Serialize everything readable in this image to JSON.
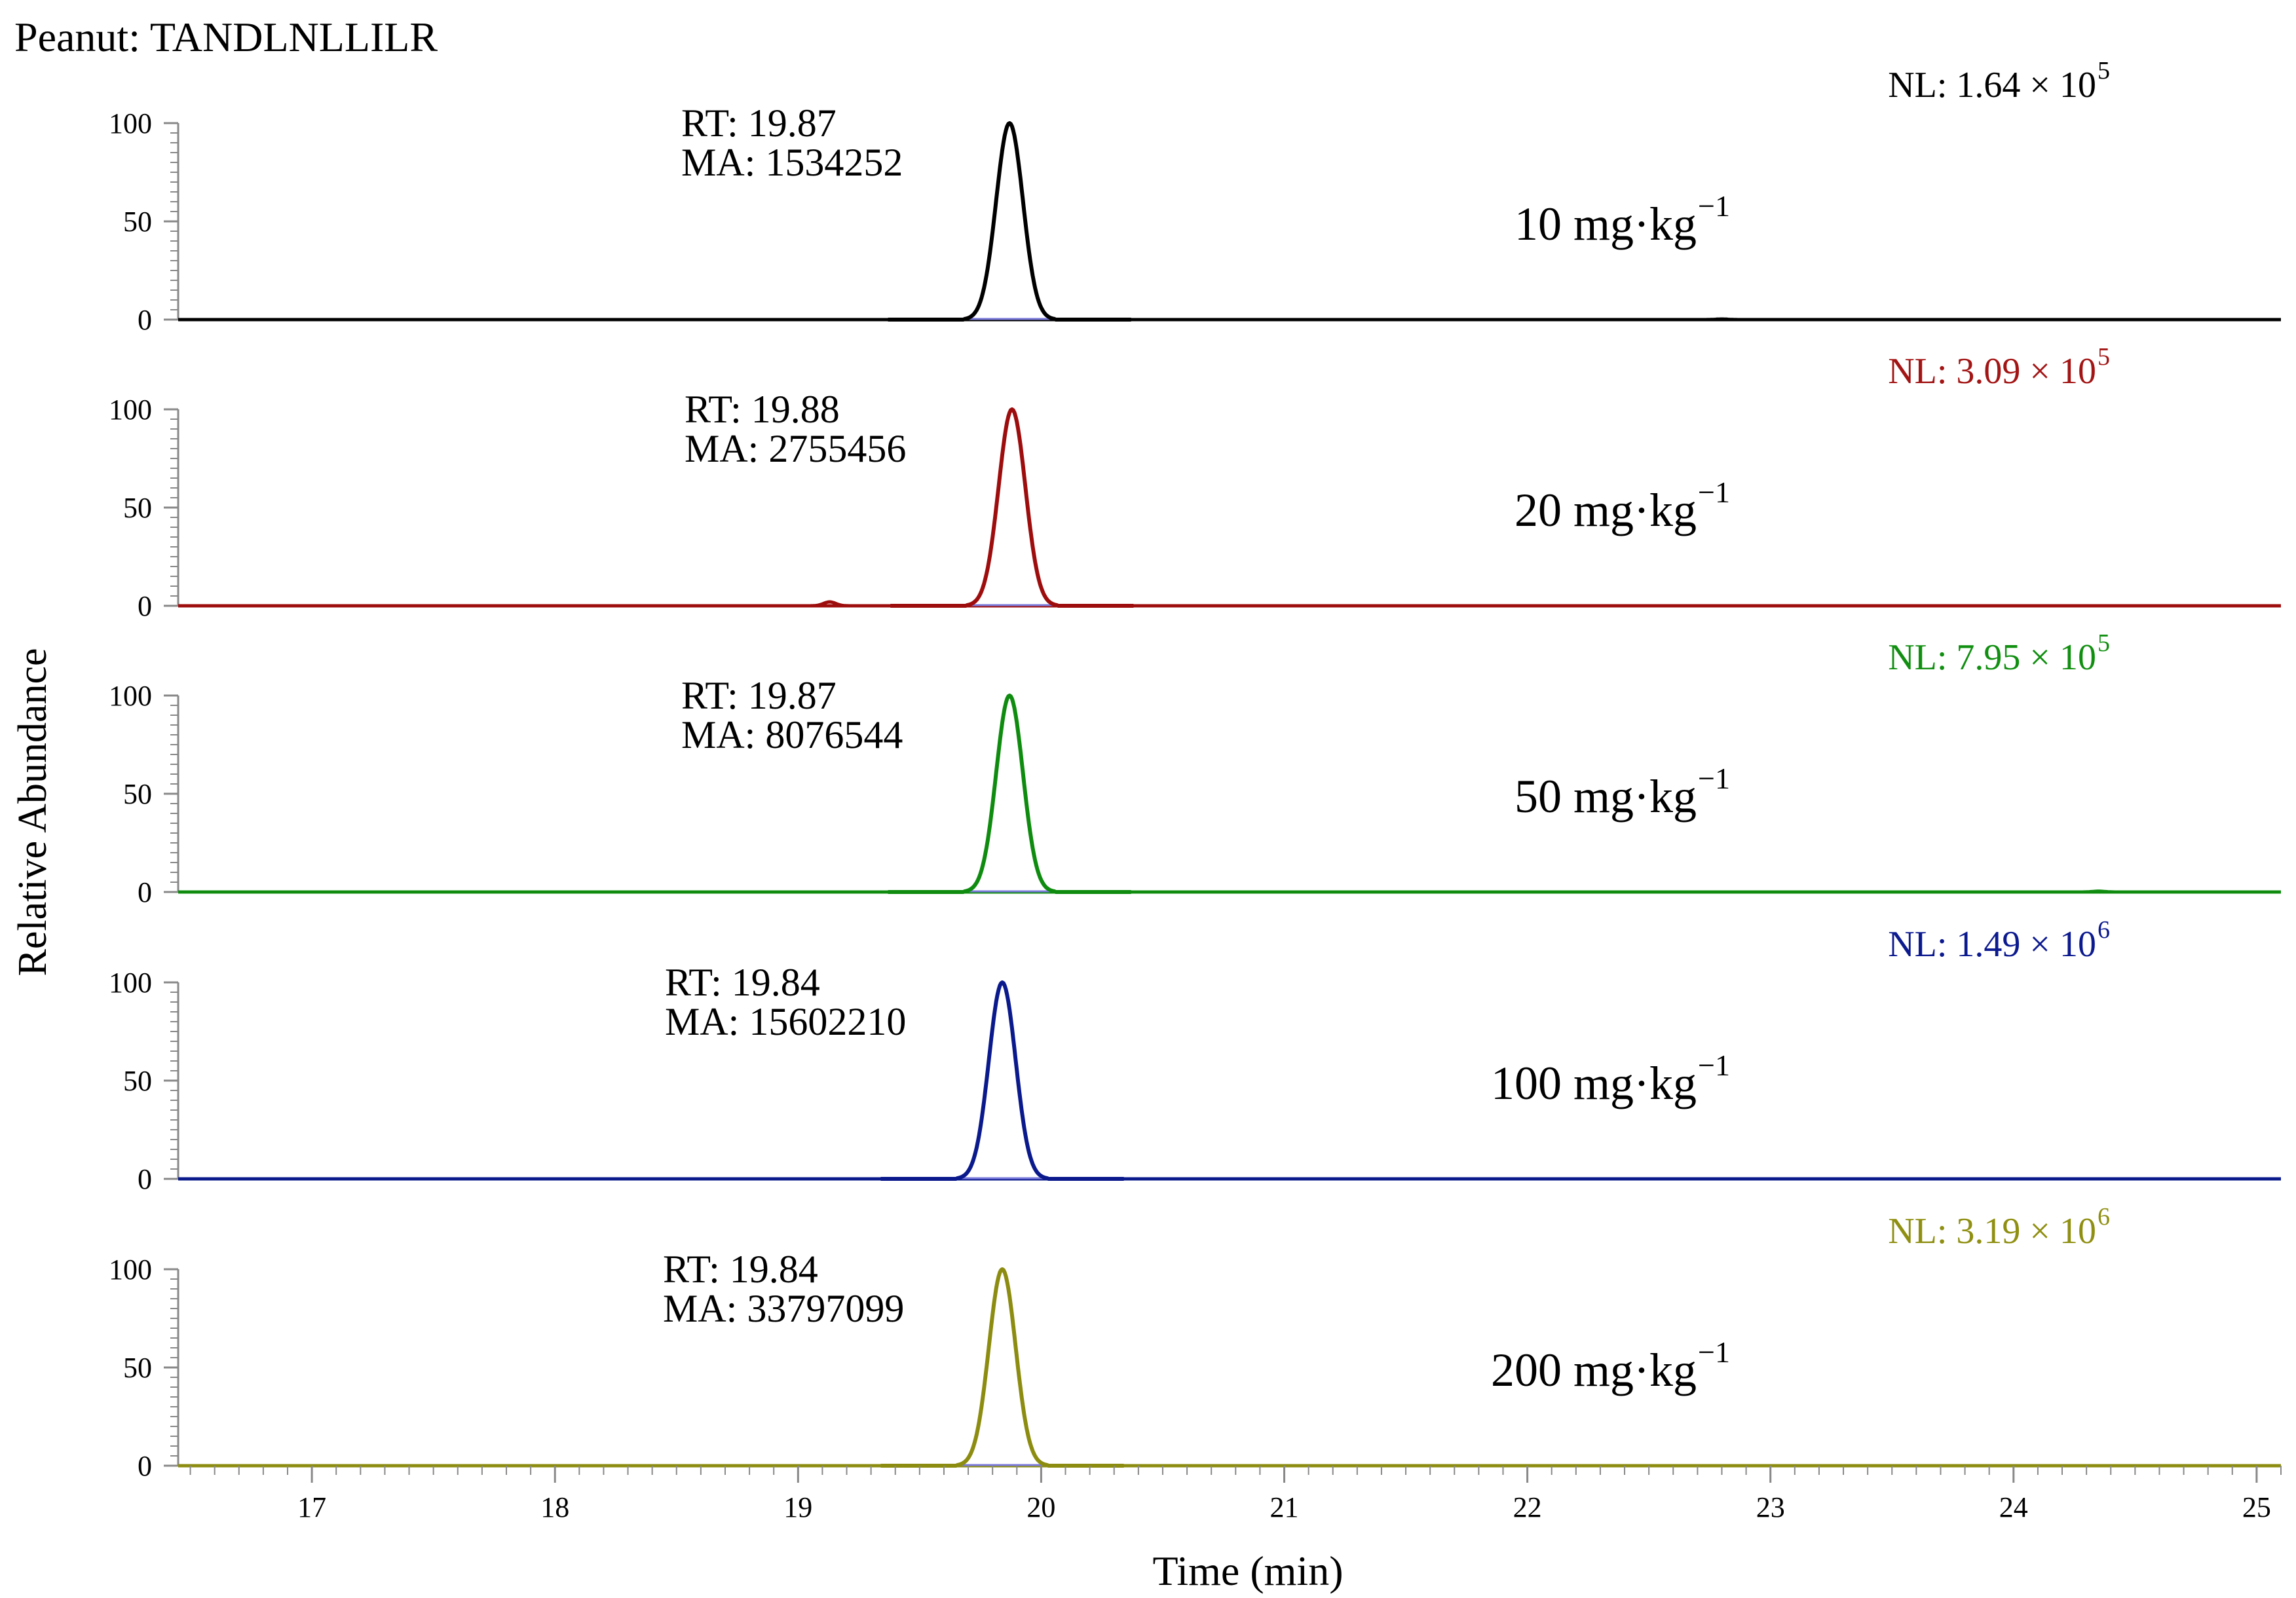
{
  "chart_data": {
    "type": "line",
    "title": "Peanut: TANDLNLLILR",
    "xlabel": "Time (min)",
    "ylabel": "Relative Abundance",
    "xlim": [
      16.45,
      25.1
    ],
    "ylim": [
      0,
      100
    ],
    "x_ticks": [
      "17",
      "18",
      "19",
      "20",
      "21",
      "22",
      "23",
      "24",
      "25"
    ],
    "y_ticks": [
      "0",
      "50",
      "100"
    ],
    "grid": false,
    "series": [
      {
        "name": "10 mg·kg⁻¹",
        "label": "10 mg·kg",
        "label_exp": "−1",
        "nl": "NL: 1.64 × 10",
        "nl_exp": "5",
        "rt": "RT: 19.87",
        "ma": "MA: 1534252",
        "peak_rt": 19.87,
        "peak_sigma": 0.055,
        "color": "#000000",
        "nl_color": "#000000",
        "minor_peaks": [
          {
            "x": 22.8,
            "height": 0.3
          }
        ]
      },
      {
        "name": "20 mg·kg⁻¹",
        "label": "20 mg·kg",
        "label_exp": "−1",
        "nl": "NL: 3.09 × 10",
        "nl_exp": "5",
        "rt": "RT: 19.88",
        "ma": "MA: 2755456",
        "peak_rt": 19.88,
        "peak_sigma": 0.055,
        "color": "#9e0d0d",
        "nl_color": "#a31515",
        "minor_peaks": [
          {
            "x": 19.13,
            "height": 2.0
          }
        ]
      },
      {
        "name": "50 mg·kg⁻¹",
        "label": "50 mg·kg",
        "label_exp": "−1",
        "nl": "NL: 7.95 × 10",
        "nl_exp": "5",
        "rt": "RT: 19.87",
        "ma": "MA: 8076544",
        "peak_rt": 19.87,
        "peak_sigma": 0.055,
        "color": "#0f8c0f",
        "nl_color": "#118f11",
        "minor_peaks": [
          {
            "x": 24.35,
            "height": 0.4
          }
        ]
      },
      {
        "name": "100 mg·kg⁻¹",
        "label": "100 mg·kg",
        "label_exp": "−1",
        "nl": "NL: 1.49 × 10",
        "nl_exp": "6",
        "rt": "RT: 19.84",
        "ma": "MA: 15602210",
        "peak_rt": 19.84,
        "peak_sigma": 0.055,
        "color": "#0a1a8c",
        "nl_color": "#0c1a8f",
        "minor_peaks": []
      },
      {
        "name": "200 mg·kg⁻¹",
        "label": "200 mg·kg",
        "label_exp": "−1",
        "nl": "NL: 3.19 × 10",
        "nl_exp": "6",
        "rt": "RT: 19.84",
        "ma": "MA: 33797099",
        "peak_rt": 19.84,
        "peak_sigma": 0.055,
        "color": "#8c8c10",
        "nl_color": "#8f8f12",
        "minor_peaks": []
      }
    ]
  }
}
